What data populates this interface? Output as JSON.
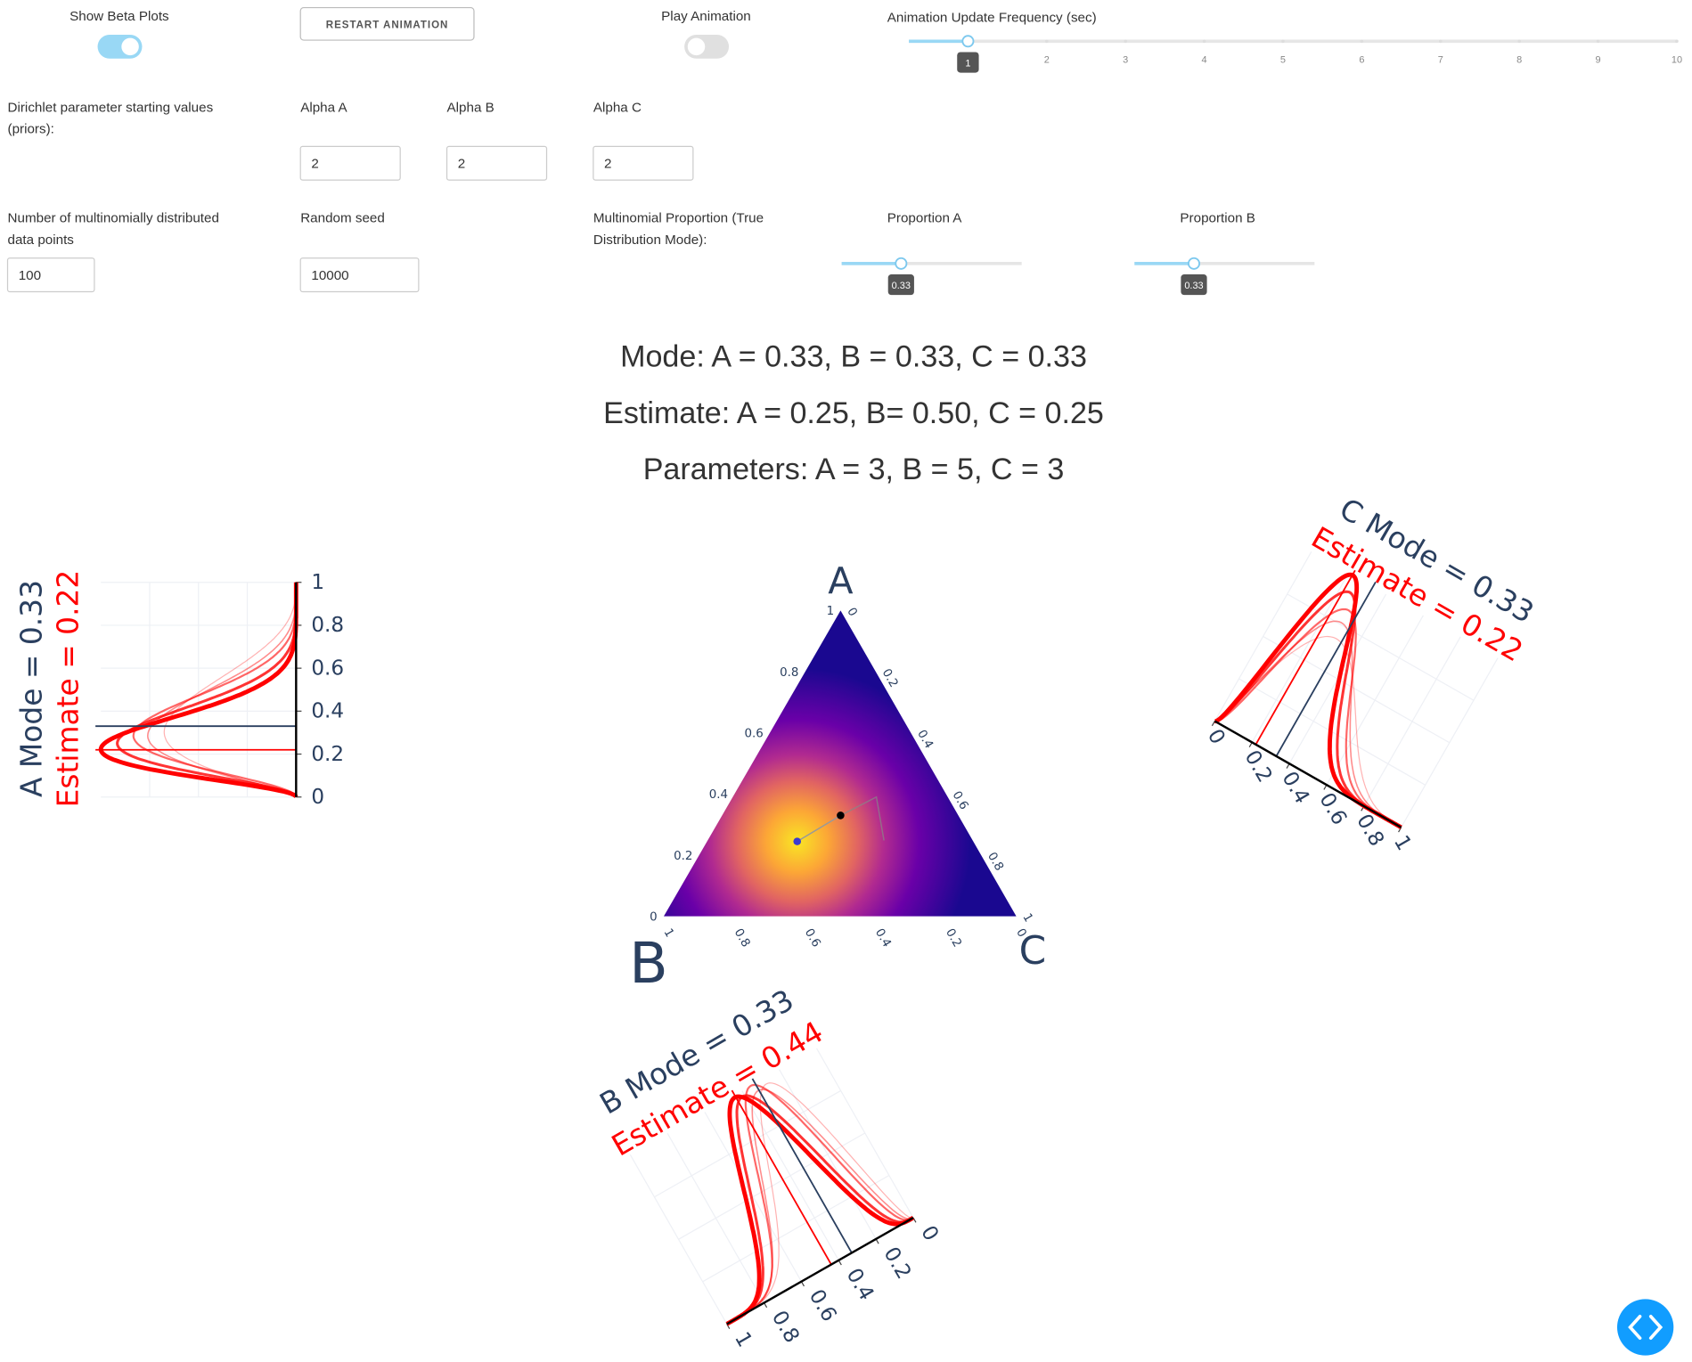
{
  "controls": {
    "show_beta_plots": {
      "label": "Show Beta Plots",
      "on": true
    },
    "restart_button": "RESTART ANIMATION",
    "play_animation": {
      "label": "Play Animation",
      "on": false
    },
    "frequency": {
      "label": "Animation Update Frequency (sec)",
      "min": 0.25,
      "ticks": [
        1,
        2,
        3,
        4,
        5,
        6,
        7,
        8,
        9,
        10
      ],
      "value": 1
    },
    "priors_label": "Dirichlet parameter starting values (priors):",
    "alpha_a": {
      "label": "Alpha A",
      "value": "2"
    },
    "alpha_b": {
      "label": "Alpha B",
      "value": "2"
    },
    "alpha_c": {
      "label": "Alpha C",
      "value": "2"
    },
    "n_points": {
      "label": "Number of multinomially distributed data points",
      "value": "100"
    },
    "seed": {
      "label": "Random seed",
      "value": "10000"
    },
    "proportion_label": "Multinomial Proportion (True Distribution Mode):",
    "proportion_a": {
      "label": "Proportion A",
      "value": 0.33
    },
    "proportion_b": {
      "label": "Proportion B",
      "value": 0.33
    }
  },
  "summary": [
    "Mode: A = 0.33, B = 0.33, C = 0.33",
    "Estimate: A = 0.25, B= 0.50, C = 0.25",
    "Parameters: A = 3, B = 5, C = 3"
  ],
  "ternary": {
    "axes": [
      "A",
      "B",
      "C"
    ],
    "ticks": [
      0,
      0.2,
      0.4,
      0.6,
      0.8,
      1
    ]
  },
  "beta_plots": [
    {
      "mode_label": "A Mode = 0.33",
      "estimate_label": "Estimate = 0.22",
      "mode": 0.33,
      "estimate": 0.22,
      "ticks": [
        0,
        0.2,
        0.4,
        0.6,
        0.8,
        1
      ]
    },
    {
      "mode_label": "B Mode = 0.33",
      "estimate_label": "Estimate = 0.44",
      "mode": 0.33,
      "estimate": 0.44,
      "ticks": [
        0,
        0.2,
        0.4,
        0.6,
        0.8,
        1
      ]
    },
    {
      "mode_label": "C Mode = 0.33",
      "estimate_label": "Estimate = 0.22",
      "mode": 0.33,
      "estimate": 0.22,
      "ticks": [
        0,
        0.2,
        0.4,
        0.6,
        0.8,
        1
      ]
    }
  ]
}
